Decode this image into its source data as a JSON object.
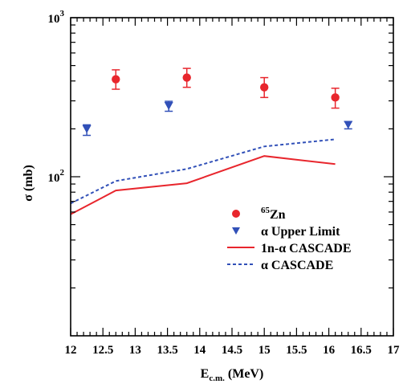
{
  "chart_data": {
    "type": "scatter",
    "xlabel": {
      "main": "E",
      "sub": "c.m.",
      "unit": " (MeV)"
    },
    "ylabel": "σ (mb)",
    "xlim": [
      12,
      17
    ],
    "ylim": [
      10,
      1000
    ],
    "yscale": "log",
    "xticks": [
      12,
      12.5,
      13,
      13.5,
      14,
      14.5,
      15,
      15.5,
      16,
      16.5,
      17
    ],
    "xtick_labels": [
      "12",
      "12.5",
      "13",
      "13.5",
      "14",
      "14.5",
      "15",
      "15.5",
      "16",
      "16.5",
      "17"
    ],
    "yticks_major": [
      {
        "value": 100,
        "base": "10",
        "exp": "2"
      },
      {
        "value": 1000,
        "base": "10",
        "exp": "3"
      }
    ],
    "legend_position": "lower-right",
    "colors": {
      "red": "#e8262d",
      "blue": "#3150b8"
    },
    "series": [
      {
        "name": "65Zn",
        "label_sup": "65",
        "label_main": "Zn",
        "kind": "points",
        "marker": "circle",
        "color": "#e8262d",
        "points": [
          {
            "x": 12.7,
            "y": 410,
            "ylo": 355,
            "yhi": 470
          },
          {
            "x": 13.8,
            "y": 420,
            "ylo": 365,
            "yhi": 480
          },
          {
            "x": 15.0,
            "y": 365,
            "ylo": 315,
            "yhi": 420
          },
          {
            "x": 16.1,
            "y": 315,
            "ylo": 270,
            "yhi": 360
          }
        ]
      },
      {
        "name": "α Upper Limit",
        "kind": "points",
        "marker": "triangle-down",
        "color": "#3150b8",
        "points": [
          {
            "x": 12.25,
            "y": 200,
            "ylo": 182,
            "yhi": 212
          },
          {
            "x": 13.52,
            "y": 280,
            "ylo": 258,
            "yhi": 298
          },
          {
            "x": 16.3,
            "y": 213,
            "ylo": 200,
            "yhi": 222
          }
        ]
      },
      {
        "name": "1n-α CASCADE",
        "kind": "line",
        "style": "solid",
        "color": "#e8262d",
        "points": [
          {
            "x": 12.0,
            "y": 58
          },
          {
            "x": 12.7,
            "y": 82
          },
          {
            "x": 13.8,
            "y": 91
          },
          {
            "x": 15.0,
            "y": 135
          },
          {
            "x": 16.1,
            "y": 120
          }
        ]
      },
      {
        "name": "α CASCADE",
        "kind": "line",
        "style": "dashed",
        "color": "#3150b8",
        "points": [
          {
            "x": 12.0,
            "y": 68
          },
          {
            "x": 12.7,
            "y": 94
          },
          {
            "x": 13.8,
            "y": 112
          },
          {
            "x": 15.0,
            "y": 155
          },
          {
            "x": 16.1,
            "y": 172
          }
        ]
      }
    ]
  }
}
